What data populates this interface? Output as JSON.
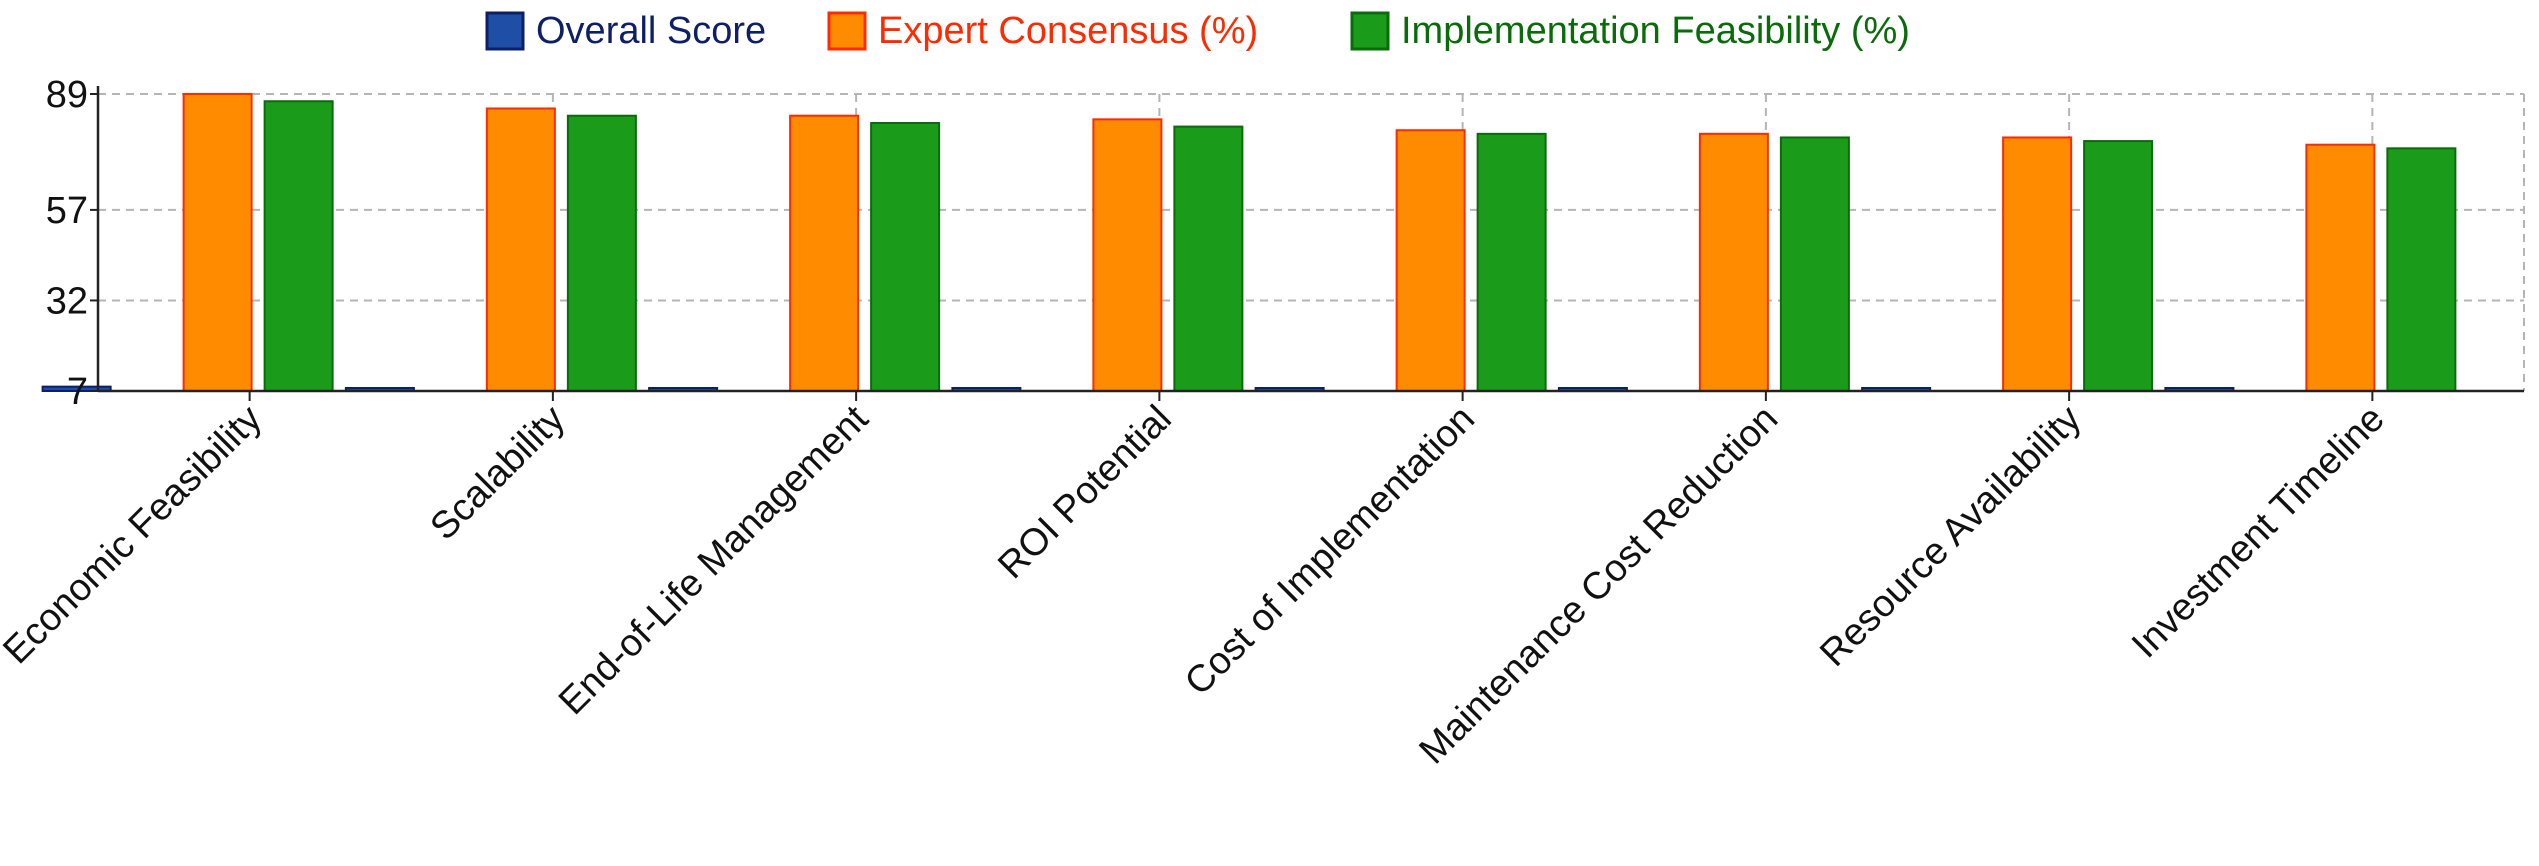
{
  "chart_data": {
    "type": "bar",
    "title": "",
    "xlabel": "",
    "ylabel": "",
    "categories": [
      "Economic Feasibility",
      "Scalability",
      "End-of-Life Management",
      "ROI Potential",
      "Cost of Implementation",
      "Maintenance Cost Reduction",
      "Resource Availability",
      "Investment Timeline"
    ],
    "series": [
      {
        "name": "Overall Score",
        "color": "#1f4ea6",
        "stroke": "#0d1f66",
        "text_color": "#0d1f66",
        "values": [
          8.2,
          7.8,
          7.5,
          7.4,
          7.2,
          7.0,
          6.9,
          6.6
        ]
      },
      {
        "name": "Expert Consensus (%)",
        "color": "#ff8c00",
        "stroke": "#ff2a00",
        "text_color": "#ff2a00",
        "values": [
          89,
          85,
          83,
          82,
          79,
          78,
          77,
          75
        ]
      },
      {
        "name": "Implementation Feasibility (%)",
        "color": "#1a9c1a",
        "stroke": "#0a6b0a",
        "text_color": "#0a6b0a",
        "values": [
          87,
          83,
          81,
          80,
          78,
          77,
          76,
          74
        ]
      }
    ],
    "y_ticks": [
      7,
      32,
      57,
      89
    ],
    "ylim": [
      7,
      89
    ],
    "grid": true,
    "legend": "top-center"
  }
}
